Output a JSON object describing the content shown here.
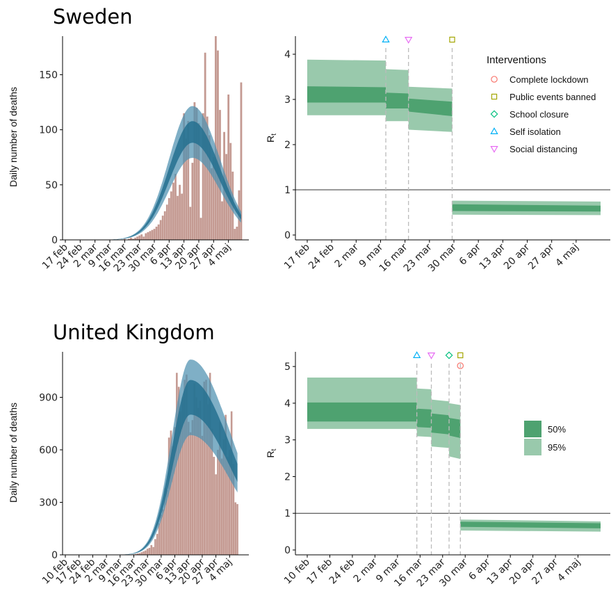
{
  "colors": {
    "bars": "#c49a92",
    "model_95": "#4d90b0",
    "model_50": "#24708f",
    "rt_95": "#99c9ac",
    "rt_50": "#4ea270",
    "Complete lockdown": "#f8766d",
    "Public events banned": "#a3a500",
    "School closure": "#00bf7d",
    "Self isolation": "#00b0f6",
    "Social distancing": "#e76bf3"
  },
  "interventions_legend": {
    "title": "Interventions",
    "items": [
      {
        "name": "Complete lockdown",
        "shape": "circle"
      },
      {
        "name": "Public events banned",
        "shape": "square"
      },
      {
        "name": "School closure",
        "shape": "diamond"
      },
      {
        "name": "Self isolation",
        "shape": "triangle-up"
      },
      {
        "name": "Social distancing",
        "shape": "triangle-down"
      }
    ]
  },
  "ci_legend": {
    "items": [
      "50%",
      "95%"
    ]
  },
  "chart_data": [
    {
      "panel": "Sweden deaths",
      "type": "bar",
      "title": "Sweden",
      "ylabel": "Daily number of deaths",
      "ylim": [
        0,
        185
      ],
      "yticks": [
        0,
        50,
        100,
        150
      ],
      "day_range": [
        0,
        84
      ],
      "xticks": [
        {
          "day": 0,
          "label": "17 feb"
        },
        {
          "day": 7,
          "label": "24 feb"
        },
        {
          "day": 14,
          "label": "2 mar"
        },
        {
          "day": 21,
          "label": "9 mar"
        },
        {
          "day": 28,
          "label": "16 mar"
        },
        {
          "day": 35,
          "label": "23 mar"
        },
        {
          "day": 42,
          "label": "30 mar"
        },
        {
          "day": 49,
          "label": "6 apr"
        },
        {
          "day": 56,
          "label": "13 apr"
        },
        {
          "day": 63,
          "label": "20 apr"
        },
        {
          "day": 70,
          "label": "27 apr"
        },
        {
          "day": 77,
          "label": "4 maj"
        }
      ],
      "bars_first_day": 27,
      "bars": [
        0,
        1,
        0,
        1,
        2,
        1,
        2,
        3,
        4,
        5,
        3,
        6,
        7,
        8,
        9,
        10,
        12,
        14,
        18,
        22,
        26,
        32,
        38,
        44,
        52,
        60,
        40,
        50,
        42,
        115,
        92,
        108,
        30,
        70,
        125,
        120,
        106,
        20,
        115,
        170,
        112,
        95,
        65,
        75,
        185,
        172,
        118,
        35,
        98,
        78,
        132,
        88,
        62,
        10,
        12,
        45,
        143
      ],
      "model": {
        "peak_day": 60,
        "peak": 98,
        "sigma_left": 11,
        "sigma_right": 13,
        "ci50": 0.1,
        "ci95": 0.24
      }
    },
    {
      "panel": "Sweden Rt",
      "type": "area",
      "ylabel": "Rt",
      "ylim": [
        0,
        4.4
      ],
      "yticks": [
        0,
        1,
        2,
        3,
        4
      ],
      "day_range": [
        0,
        84
      ],
      "xticks": [
        {
          "day": 0,
          "label": "17 feb"
        },
        {
          "day": 7,
          "label": "24 feb"
        },
        {
          "day": 14,
          "label": "2 mar"
        },
        {
          "day": 21,
          "label": "9 mar"
        },
        {
          "day": 28,
          "label": "16 mar"
        },
        {
          "day": 35,
          "label": "23 mar"
        },
        {
          "day": 42,
          "label": "30 mar"
        },
        {
          "day": 49,
          "label": "6 apr"
        },
        {
          "day": 56,
          "label": "13 apr"
        },
        {
          "day": 63,
          "label": "20 apr"
        },
        {
          "day": 70,
          "label": "27 apr"
        },
        {
          "day": 77,
          "label": "4 maj"
        }
      ],
      "reference_line": 1,
      "segments": [
        {
          "from": 0,
          "to": 22.5,
          "median": [
            3.12,
            3.1
          ],
          "ci50": [
            [
              2.93,
              3.29
            ],
            [
              2.93,
              3.27
            ]
          ],
          "ci95": [
            [
              2.65,
              3.88
            ],
            [
              2.65,
              3.86
            ]
          ]
        },
        {
          "from": 22.5,
          "to": 29,
          "median": [
            2.98,
            2.96
          ],
          "ci50": [
            [
              2.8,
              3.15
            ],
            [
              2.8,
              3.13
            ]
          ],
          "ci95": [
            [
              2.52,
              3.67
            ],
            [
              2.52,
              3.65
            ]
          ]
        },
        {
          "from": 29,
          "to": 41.5,
          "median": [
            2.88,
            2.79
          ],
          "ci50": [
            [
              2.73,
              3.02
            ],
            [
              2.63,
              2.95
            ]
          ],
          "ci95": [
            [
              2.33,
              3.28
            ],
            [
              2.28,
              3.24
            ]
          ]
        },
        {
          "from": 41.5,
          "to": 84,
          "median": [
            0.6,
            0.58
          ],
          "ci50": [
            [
              0.53,
              0.68
            ],
            [
              0.52,
              0.65
            ]
          ],
          "ci95": [
            [
              0.45,
              0.76
            ],
            [
              0.44,
              0.74
            ]
          ]
        }
      ],
      "events": [
        {
          "day": 22.5,
          "interventions": [
            "Self isolation"
          ]
        },
        {
          "day": 29,
          "interventions": [
            "Social distancing"
          ]
        },
        {
          "day": 41.5,
          "interventions": [
            "Public events banned"
          ]
        }
      ]
    },
    {
      "panel": "United Kingdom deaths",
      "type": "bar",
      "title": "United Kingdom",
      "ylabel": "Daily number of deaths",
      "ylim": [
        0,
        1160
      ],
      "yticks": [
        0,
        300,
        600,
        900
      ],
      "day_range": [
        0,
        91
      ],
      "xticks": [
        {
          "day": 0,
          "label": "10 feb"
        },
        {
          "day": 7,
          "label": "17 feb"
        },
        {
          "day": 14,
          "label": "24 feb"
        },
        {
          "day": 21,
          "label": "2 mar"
        },
        {
          "day": 28,
          "label": "9 mar"
        },
        {
          "day": 35,
          "label": "16 mar"
        },
        {
          "day": 42,
          "label": "23 mar"
        },
        {
          "day": 49,
          "label": "30 mar"
        },
        {
          "day": 56,
          "label": "6 apr"
        },
        {
          "day": 63,
          "label": "13 apr"
        },
        {
          "day": 70,
          "label": "20 apr"
        },
        {
          "day": 77,
          "label": "27 apr"
        },
        {
          "day": 84,
          "label": "4 maj"
        }
      ],
      "bars_first_day": 30,
      "bars": [
        1,
        0,
        1,
        2,
        2,
        3,
        5,
        8,
        10,
        15,
        20,
        25,
        35,
        40,
        56,
        45,
        90,
        120,
        180,
        230,
        260,
        380,
        370,
        670,
        710,
        620,
        730,
        1040,
        960,
        820,
        900,
        1000,
        1030,
        760,
        700,
        770,
        980,
        900,
        840,
        880,
        680,
        990,
        1000,
        860,
        1040,
        720,
        560,
        460,
        600,
        760,
        550,
        660,
        800,
        560,
        600,
        820,
        520,
        300,
        290
      ],
      "model": {
        "peak_day": 64,
        "peak": 900,
        "sigma_left": 9.5,
        "sigma_right": 21,
        "ci50": 0.11,
        "ci95": 0.24
      }
    },
    {
      "panel": "United Kingdom Rt",
      "type": "area",
      "ylabel": "Rt",
      "ylim": [
        0,
        5.4
      ],
      "yticks": [
        0,
        1,
        2,
        3,
        4,
        5
      ],
      "day_range": [
        0,
        91
      ],
      "xticks": [
        {
          "day": 0,
          "label": "10 feb"
        },
        {
          "day": 7,
          "label": "17 feb"
        },
        {
          "day": 14,
          "label": "24 feb"
        },
        {
          "day": 21,
          "label": "2 mar"
        },
        {
          "day": 28,
          "label": "9 mar"
        },
        {
          "day": 35,
          "label": "16 mar"
        },
        {
          "day": 42,
          "label": "23 mar"
        },
        {
          "day": 49,
          "label": "30 mar"
        },
        {
          "day": 56,
          "label": "6 apr"
        },
        {
          "day": 63,
          "label": "13 apr"
        },
        {
          "day": 70,
          "label": "20 apr"
        },
        {
          "day": 77,
          "label": "27 apr"
        },
        {
          "day": 84,
          "label": "4 maj"
        }
      ],
      "reference_line": 1,
      "segments": [
        {
          "from": 0,
          "to": 34,
          "median": [
            3.77,
            3.77
          ],
          "ci50": [
            [
              3.5,
              4.02
            ],
            [
              3.5,
              4.02
            ]
          ],
          "ci95": [
            [
              3.3,
              4.7
            ],
            [
              3.3,
              4.7
            ]
          ]
        },
        {
          "from": 34,
          "to": 38.5,
          "median": [
            3.6,
            3.58
          ],
          "ci50": [
            [
              3.35,
              3.85
            ],
            [
              3.33,
              3.83
            ]
          ],
          "ci95": [
            [
              3.1,
              4.4
            ],
            [
              3.08,
              4.38
            ]
          ]
        },
        {
          "from": 38.5,
          "to": 44,
          "median": [
            3.45,
            3.4
          ],
          "ci50": [
            [
              3.2,
              3.72
            ],
            [
              3.15,
              3.67
            ]
          ],
          "ci95": [
            [
              2.82,
              4.1
            ],
            [
              2.78,
              4.05
            ]
          ]
        },
        {
          "from": 44,
          "to": 47.5,
          "median": [
            3.35,
            3.3
          ],
          "ci50": [
            [
              3.12,
              3.6
            ],
            [
              3.05,
              3.55
            ]
          ],
          "ci95": [
            [
              2.55,
              4.0
            ],
            [
              2.48,
              3.95
            ]
          ]
        },
        {
          "from": 47.5,
          "to": 91,
          "median": [
            0.7,
            0.66
          ],
          "ci50": [
            [
              0.63,
              0.77
            ],
            [
              0.59,
              0.73
            ]
          ],
          "ci95": [
            [
              0.53,
              0.83
            ],
            [
              0.5,
              0.78
            ]
          ]
        }
      ],
      "events": [
        {
          "day": 34,
          "interventions": [
            "Self isolation"
          ]
        },
        {
          "day": 38.5,
          "interventions": [
            "Social distancing"
          ]
        },
        {
          "day": 44,
          "interventions": [
            "School closure"
          ]
        },
        {
          "day": 47.5,
          "interventions": [
            "Public events banned",
            "Complete lockdown"
          ]
        }
      ]
    }
  ]
}
